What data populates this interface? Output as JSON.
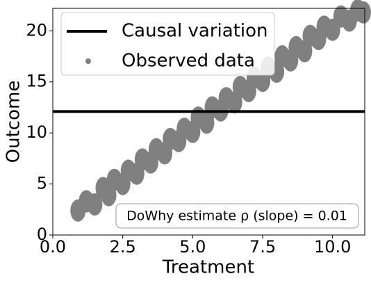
{
  "chart_data": {
    "type": "scatter",
    "xlabel": "Treatment",
    "ylabel": "Outcome",
    "xlim": [
      0,
      11.15
    ],
    "ylim": [
      0,
      22.2
    ],
    "xticks": [
      {
        "value": 0,
        "label": "0.0"
      },
      {
        "value": 2.5,
        "label": "2.5"
      },
      {
        "value": 5,
        "label": "5.0"
      },
      {
        "value": 7.5,
        "label": "7.5"
      },
      {
        "value": 10,
        "label": "10.0"
      }
    ],
    "yticks": [
      0,
      5,
      10,
      15,
      20
    ],
    "legend": "upper left",
    "annotation": "DoWhy estimate ρ (slope) = 0.01",
    "series": [
      {
        "name": "Causal variation",
        "type": "hline",
        "color": "#000000",
        "value": 12.1
      },
      {
        "name": "Observed data",
        "type": "scatter",
        "color": "#808080",
        "x": [
          0.9,
          1.2,
          1.5,
          1.8,
          2.0,
          2.2,
          2.5,
          2.7,
          3.0,
          3.2,
          3.5,
          3.7,
          4.0,
          4.2,
          4.5,
          4.7,
          5.0,
          5.2,
          5.5,
          5.7,
          6.0,
          6.2,
          6.5,
          6.7,
          7.0,
          7.2,
          7.5,
          7.7,
          8.0,
          8.2,
          8.5,
          8.7,
          9.0,
          9.2,
          9.5,
          9.7,
          10.0,
          10.3,
          10.6,
          10.9,
          11.1
        ],
        "values": [
          2.4,
          3.3,
          3.0,
          4.6,
          3.9,
          5.4,
          5.0,
          6.3,
          6.0,
          7.4,
          7.1,
          8.4,
          8.0,
          9.4,
          9.2,
          10.4,
          10.1,
          11.5,
          11.0,
          12.5,
          12.2,
          13.4,
          13.0,
          14.5,
          14.1,
          15.4,
          15.1,
          16.4,
          16.0,
          17.5,
          17.1,
          18.4,
          18.0,
          19.5,
          19.2,
          20.4,
          20.1,
          21.4,
          21.0,
          22.0,
          21.8
        ]
      }
    ]
  }
}
